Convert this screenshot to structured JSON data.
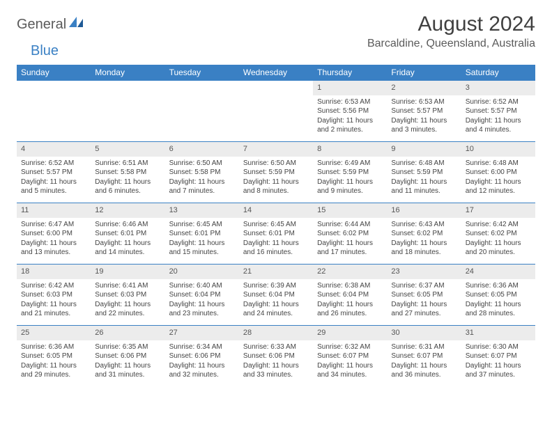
{
  "brand": {
    "part1": "General",
    "part2": "Blue"
  },
  "title": "August 2024",
  "location": "Barcaldine, Queensland, Australia",
  "colors": {
    "header_bg": "#3a80c4",
    "header_text": "#ffffff",
    "daynum_bg": "#ececec",
    "border": "#3a80c4",
    "brand_gray": "#5a5a5a",
    "brand_blue": "#3a80c4",
    "text": "#444444"
  },
  "weekdays": [
    "Sunday",
    "Monday",
    "Tuesday",
    "Wednesday",
    "Thursday",
    "Friday",
    "Saturday"
  ],
  "weeks": [
    [
      {
        "blank": true
      },
      {
        "blank": true
      },
      {
        "blank": true
      },
      {
        "blank": true
      },
      {
        "day": "1",
        "sunrise": "Sunrise: 6:53 AM",
        "sunset": "Sunset: 5:56 PM",
        "daylight1": "Daylight: 11 hours",
        "daylight2": "and 2 minutes."
      },
      {
        "day": "2",
        "sunrise": "Sunrise: 6:53 AM",
        "sunset": "Sunset: 5:57 PM",
        "daylight1": "Daylight: 11 hours",
        "daylight2": "and 3 minutes."
      },
      {
        "day": "3",
        "sunrise": "Sunrise: 6:52 AM",
        "sunset": "Sunset: 5:57 PM",
        "daylight1": "Daylight: 11 hours",
        "daylight2": "and 4 minutes."
      }
    ],
    [
      {
        "day": "4",
        "sunrise": "Sunrise: 6:52 AM",
        "sunset": "Sunset: 5:57 PM",
        "daylight1": "Daylight: 11 hours",
        "daylight2": "and 5 minutes."
      },
      {
        "day": "5",
        "sunrise": "Sunrise: 6:51 AM",
        "sunset": "Sunset: 5:58 PM",
        "daylight1": "Daylight: 11 hours",
        "daylight2": "and 6 minutes."
      },
      {
        "day": "6",
        "sunrise": "Sunrise: 6:50 AM",
        "sunset": "Sunset: 5:58 PM",
        "daylight1": "Daylight: 11 hours",
        "daylight2": "and 7 minutes."
      },
      {
        "day": "7",
        "sunrise": "Sunrise: 6:50 AM",
        "sunset": "Sunset: 5:59 PM",
        "daylight1": "Daylight: 11 hours",
        "daylight2": "and 8 minutes."
      },
      {
        "day": "8",
        "sunrise": "Sunrise: 6:49 AM",
        "sunset": "Sunset: 5:59 PM",
        "daylight1": "Daylight: 11 hours",
        "daylight2": "and 9 minutes."
      },
      {
        "day": "9",
        "sunrise": "Sunrise: 6:48 AM",
        "sunset": "Sunset: 5:59 PM",
        "daylight1": "Daylight: 11 hours",
        "daylight2": "and 11 minutes."
      },
      {
        "day": "10",
        "sunrise": "Sunrise: 6:48 AM",
        "sunset": "Sunset: 6:00 PM",
        "daylight1": "Daylight: 11 hours",
        "daylight2": "and 12 minutes."
      }
    ],
    [
      {
        "day": "11",
        "sunrise": "Sunrise: 6:47 AM",
        "sunset": "Sunset: 6:00 PM",
        "daylight1": "Daylight: 11 hours",
        "daylight2": "and 13 minutes."
      },
      {
        "day": "12",
        "sunrise": "Sunrise: 6:46 AM",
        "sunset": "Sunset: 6:01 PM",
        "daylight1": "Daylight: 11 hours",
        "daylight2": "and 14 minutes."
      },
      {
        "day": "13",
        "sunrise": "Sunrise: 6:45 AM",
        "sunset": "Sunset: 6:01 PM",
        "daylight1": "Daylight: 11 hours",
        "daylight2": "and 15 minutes."
      },
      {
        "day": "14",
        "sunrise": "Sunrise: 6:45 AM",
        "sunset": "Sunset: 6:01 PM",
        "daylight1": "Daylight: 11 hours",
        "daylight2": "and 16 minutes."
      },
      {
        "day": "15",
        "sunrise": "Sunrise: 6:44 AM",
        "sunset": "Sunset: 6:02 PM",
        "daylight1": "Daylight: 11 hours",
        "daylight2": "and 17 minutes."
      },
      {
        "day": "16",
        "sunrise": "Sunrise: 6:43 AM",
        "sunset": "Sunset: 6:02 PM",
        "daylight1": "Daylight: 11 hours",
        "daylight2": "and 18 minutes."
      },
      {
        "day": "17",
        "sunrise": "Sunrise: 6:42 AM",
        "sunset": "Sunset: 6:02 PM",
        "daylight1": "Daylight: 11 hours",
        "daylight2": "and 20 minutes."
      }
    ],
    [
      {
        "day": "18",
        "sunrise": "Sunrise: 6:42 AM",
        "sunset": "Sunset: 6:03 PM",
        "daylight1": "Daylight: 11 hours",
        "daylight2": "and 21 minutes."
      },
      {
        "day": "19",
        "sunrise": "Sunrise: 6:41 AM",
        "sunset": "Sunset: 6:03 PM",
        "daylight1": "Daylight: 11 hours",
        "daylight2": "and 22 minutes."
      },
      {
        "day": "20",
        "sunrise": "Sunrise: 6:40 AM",
        "sunset": "Sunset: 6:04 PM",
        "daylight1": "Daylight: 11 hours",
        "daylight2": "and 23 minutes."
      },
      {
        "day": "21",
        "sunrise": "Sunrise: 6:39 AM",
        "sunset": "Sunset: 6:04 PM",
        "daylight1": "Daylight: 11 hours",
        "daylight2": "and 24 minutes."
      },
      {
        "day": "22",
        "sunrise": "Sunrise: 6:38 AM",
        "sunset": "Sunset: 6:04 PM",
        "daylight1": "Daylight: 11 hours",
        "daylight2": "and 26 minutes."
      },
      {
        "day": "23",
        "sunrise": "Sunrise: 6:37 AM",
        "sunset": "Sunset: 6:05 PM",
        "daylight1": "Daylight: 11 hours",
        "daylight2": "and 27 minutes."
      },
      {
        "day": "24",
        "sunrise": "Sunrise: 6:36 AM",
        "sunset": "Sunset: 6:05 PM",
        "daylight1": "Daylight: 11 hours",
        "daylight2": "and 28 minutes."
      }
    ],
    [
      {
        "day": "25",
        "sunrise": "Sunrise: 6:36 AM",
        "sunset": "Sunset: 6:05 PM",
        "daylight1": "Daylight: 11 hours",
        "daylight2": "and 29 minutes."
      },
      {
        "day": "26",
        "sunrise": "Sunrise: 6:35 AM",
        "sunset": "Sunset: 6:06 PM",
        "daylight1": "Daylight: 11 hours",
        "daylight2": "and 31 minutes."
      },
      {
        "day": "27",
        "sunrise": "Sunrise: 6:34 AM",
        "sunset": "Sunset: 6:06 PM",
        "daylight1": "Daylight: 11 hours",
        "daylight2": "and 32 minutes."
      },
      {
        "day": "28",
        "sunrise": "Sunrise: 6:33 AM",
        "sunset": "Sunset: 6:06 PM",
        "daylight1": "Daylight: 11 hours",
        "daylight2": "and 33 minutes."
      },
      {
        "day": "29",
        "sunrise": "Sunrise: 6:32 AM",
        "sunset": "Sunset: 6:07 PM",
        "daylight1": "Daylight: 11 hours",
        "daylight2": "and 34 minutes."
      },
      {
        "day": "30",
        "sunrise": "Sunrise: 6:31 AM",
        "sunset": "Sunset: 6:07 PM",
        "daylight1": "Daylight: 11 hours",
        "daylight2": "and 36 minutes."
      },
      {
        "day": "31",
        "sunrise": "Sunrise: 6:30 AM",
        "sunset": "Sunset: 6:07 PM",
        "daylight1": "Daylight: 11 hours",
        "daylight2": "and 37 minutes."
      }
    ]
  ]
}
